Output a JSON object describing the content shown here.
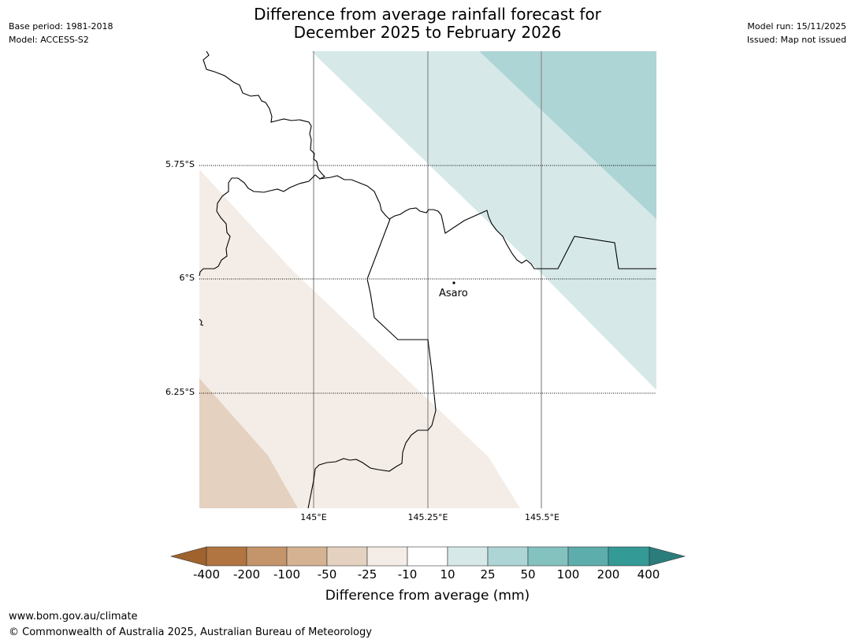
{
  "header": {
    "base_period": "Base period: 1981-2018",
    "model": "Model: ACCESS-S2",
    "model_run": "Model run: 15/11/2025",
    "issued": "Issued: Map not issued",
    "title_line1": "Difference from average rainfall forecast for",
    "title_line2": "December 2025 to February 2026"
  },
  "map": {
    "lat_labels": [
      "5.75°S",
      "6°S",
      "6.25°S"
    ],
    "lon_labels": [
      "145°E",
      "145.25°E",
      "145.5°E"
    ],
    "city": "Asaro"
  },
  "colorbar": {
    "title": "Difference from average (mm)",
    "tick_labels": [
      "-400",
      "-200",
      "-100",
      "-50",
      "-25",
      "-10",
      "10",
      "25",
      "50",
      "100",
      "200",
      "400"
    ],
    "colors": [
      "#a0632d",
      "#b07540",
      "#c4946a",
      "#d4b292",
      "#e4d1c0",
      "#f4ede7",
      "#ffffff",
      "#d6e9e8",
      "#aed5d5",
      "#84c2c0",
      "#5cadab",
      "#339a96",
      "#2a7d7a"
    ]
  },
  "footer": {
    "url": "www.bom.gov.au/climate",
    "copyright": "© Commonwealth of Australia 2025, Australian Bureau of Meteorology"
  }
}
